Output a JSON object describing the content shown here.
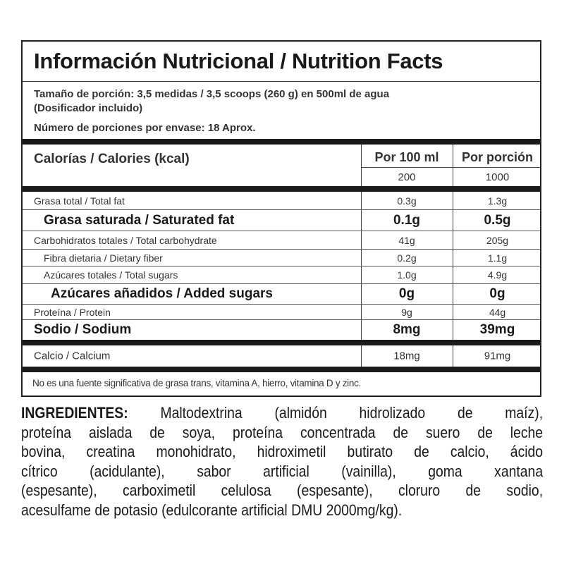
{
  "title": "Información Nutricional / Nutrition Facts",
  "serving": {
    "line1": "Tamaño de porción: 3,5 medidas / 3,5 scoops (260 g) en 500ml de agua",
    "line2": "(Dosificador incluido)",
    "servings_per_container": "Número de porciones por envase: 18 Aprox."
  },
  "calories": {
    "label": "Calorías / Calories (kcal)",
    "col1_header": "Por 100 ml",
    "col2_header": "Por porción",
    "col1_value": "200",
    "col2_value": "1000"
  },
  "nutrients": [
    {
      "label": "Grasa total / Total fat",
      "per100": "0.3g",
      "perServing": "1.3g"
    },
    {
      "label": "Grasa saturada / Saturated fat",
      "per100": "0.1g",
      "perServing": "0.5g"
    },
    {
      "label": "Carbohidratos totales / Total carbohydrate",
      "per100": "41g",
      "perServing": "205g"
    },
    {
      "label": "Fibra dietaria / Dietary fiber",
      "per100": "0.2g",
      "perServing": "1.1g"
    },
    {
      "label": "Azúcares totales / Total sugars",
      "per100": "1.0g",
      "perServing": "4.9g"
    },
    {
      "label": "Azúcares añadidos / Added sugars",
      "per100": "0g",
      "perServing": "0g"
    },
    {
      "label": "Proteína / Protein",
      "per100": "9g",
      "perServing": "44g"
    },
    {
      "label": "Sodio / Sodium",
      "per100": "8mg",
      "perServing": "39mg"
    },
    {
      "label": "Calcio / Calcium",
      "per100": "18mg",
      "perServing": "91mg"
    }
  ],
  "footnote": "No es una fuente significativa de grasa trans, vitamina  A, hierro, vitamina D y zinc.",
  "ingredients": {
    "heading": "INGREDIENTES:",
    "lines": [
      "Maltodextrina (almidón hidrolizado de maíz),",
      "proteína aislada de soya, proteína concentrada de suero de leche",
      "bovina, creatina monohidrato, hidroximetil butirato de calcio, ácido",
      "cítrico (acidulante), sabor artificial (vainilla), goma xantana",
      "(espesante), carboximetil celulosa (espesante), cloruro de sodio,",
      "acesulfame de potasio (edulcorante artificial DMU 2000mg/kg)."
    ]
  }
}
